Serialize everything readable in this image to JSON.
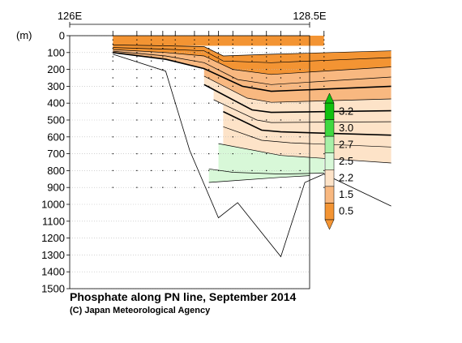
{
  "chart_data": {
    "type": "contour section",
    "title": "Phosphate along PN line, September 2014",
    "credit": "(C) Japan Meteorological Agency",
    "x_tick_labels": [
      "126E",
      "128.5E"
    ],
    "xlim": [
      126,
      128.5
    ],
    "y_unit_label": "(m)",
    "ylim": [
      0,
      1500
    ],
    "y_ticks": [
      0,
      100,
      200,
      300,
      400,
      500,
      600,
      700,
      800,
      900,
      1000,
      1100,
      1200,
      1300,
      1400,
      1500
    ],
    "grid": true,
    "legend": {
      "placement": "right",
      "levels": [
        "3.2",
        "3.0",
        "2.7",
        "2.5",
        "2.2",
        "1.5",
        "0.5"
      ],
      "colors": [
        "#10c010",
        "#40d840",
        "#a8f0a8",
        "#d8f8d8",
        "#fde3c8",
        "#f8b880",
        "#f39433"
      ]
    },
    "station_longitudes": [
      126.45,
      126.7,
      126.85,
      126.97,
      127.1,
      127.3,
      127.45,
      127.55,
      127.7,
      127.9,
      128.05,
      128.2,
      128.4,
      128.65
    ],
    "sample_depths": [
      0,
      25,
      50,
      75,
      100,
      125,
      150,
      200,
      250,
      300,
      400,
      500,
      600,
      700,
      800,
      900,
      1000
    ],
    "bottom_profile": [
      {
        "x": 126.45,
        "depth": 110
      },
      {
        "x": 127.0,
        "depth": 210
      },
      {
        "x": 127.25,
        "depth": 680
      },
      {
        "x": 127.55,
        "depth": 1080
      },
      {
        "x": 127.75,
        "depth": 990
      },
      {
        "x": 128.2,
        "depth": 1310
      },
      {
        "x": 128.45,
        "depth": 870
      },
      {
        "x": 128.65,
        "depth": 820
      },
      {
        "x": 129.35,
        "depth": 1010
      }
    ],
    "contour_lines": [
      {
        "level": 0.5,
        "points": [
          [
            126.45,
            55
          ],
          [
            127.0,
            60
          ],
          [
            127.4,
            65
          ],
          [
            127.6,
            120
          ],
          [
            128.1,
            110
          ],
          [
            129.35,
            90
          ]
        ]
      },
      {
        "level": 0.8,
        "points": [
          [
            126.45,
            70
          ],
          [
            127.0,
            80
          ],
          [
            127.4,
            90
          ],
          [
            127.6,
            150
          ],
          [
            128.1,
            160
          ],
          [
            129.35,
            130
          ]
        ]
      },
      {
        "level": 1.0,
        "points": [
          [
            126.45,
            82
          ],
          [
            127.0,
            100
          ],
          [
            127.4,
            120
          ],
          [
            127.7,
            200
          ],
          [
            128.1,
            230
          ],
          [
            129.35,
            185
          ]
        ]
      },
      {
        "level": 1.2,
        "points": [
          [
            126.45,
            92
          ],
          [
            127.0,
            120
          ],
          [
            127.4,
            160
          ],
          [
            127.75,
            260
          ],
          [
            128.1,
            290
          ],
          [
            129.35,
            245
          ]
        ]
      },
      {
        "level": 1.5,
        "points": [
          [
            126.45,
            100
          ],
          [
            127.0,
            140
          ],
          [
            127.4,
            195
          ],
          [
            127.8,
            300
          ],
          [
            128.1,
            330
          ],
          [
            129.35,
            300
          ]
        ]
      },
      {
        "level": 1.7,
        "points": [
          [
            127.4,
            240
          ],
          [
            127.85,
            370
          ],
          [
            128.1,
            395
          ],
          [
            129.35,
            375
          ]
        ]
      },
      {
        "level": 2.0,
        "points": [
          [
            127.4,
            290
          ],
          [
            127.9,
            440
          ],
          [
            128.1,
            455
          ],
          [
            129.35,
            445
          ]
        ]
      },
      {
        "level": 2.1,
        "points": [
          [
            127.5,
            380
          ],
          [
            127.95,
            500
          ],
          [
            128.1,
            515
          ],
          [
            129.35,
            510
          ]
        ]
      },
      {
        "level": 2.2,
        "points": [
          [
            127.6,
            450
          ],
          [
            128.0,
            560
          ],
          [
            128.2,
            570
          ],
          [
            129.35,
            590
          ]
        ]
      },
      {
        "level": 2.3,
        "points": [
          [
            127.6,
            540
          ],
          [
            128.0,
            620
          ],
          [
            128.3,
            635
          ],
          [
            129.35,
            660
          ]
        ]
      },
      {
        "level": 2.4,
        "points": [
          [
            127.55,
            640
          ],
          [
            128.2,
            710
          ],
          [
            129.35,
            755
          ]
        ]
      },
      {
        "level": 2.5,
        "points": [
          [
            127.45,
            790
          ],
          [
            127.7,
            810
          ],
          [
            128.2,
            820
          ],
          [
            128.65,
            815
          ]
        ]
      },
      {
        "level": 2.6,
        "points": [
          [
            127.45,
            870
          ],
          [
            127.7,
            860
          ],
          [
            128.2,
            840
          ],
          [
            128.5,
            830
          ]
        ]
      }
    ]
  }
}
